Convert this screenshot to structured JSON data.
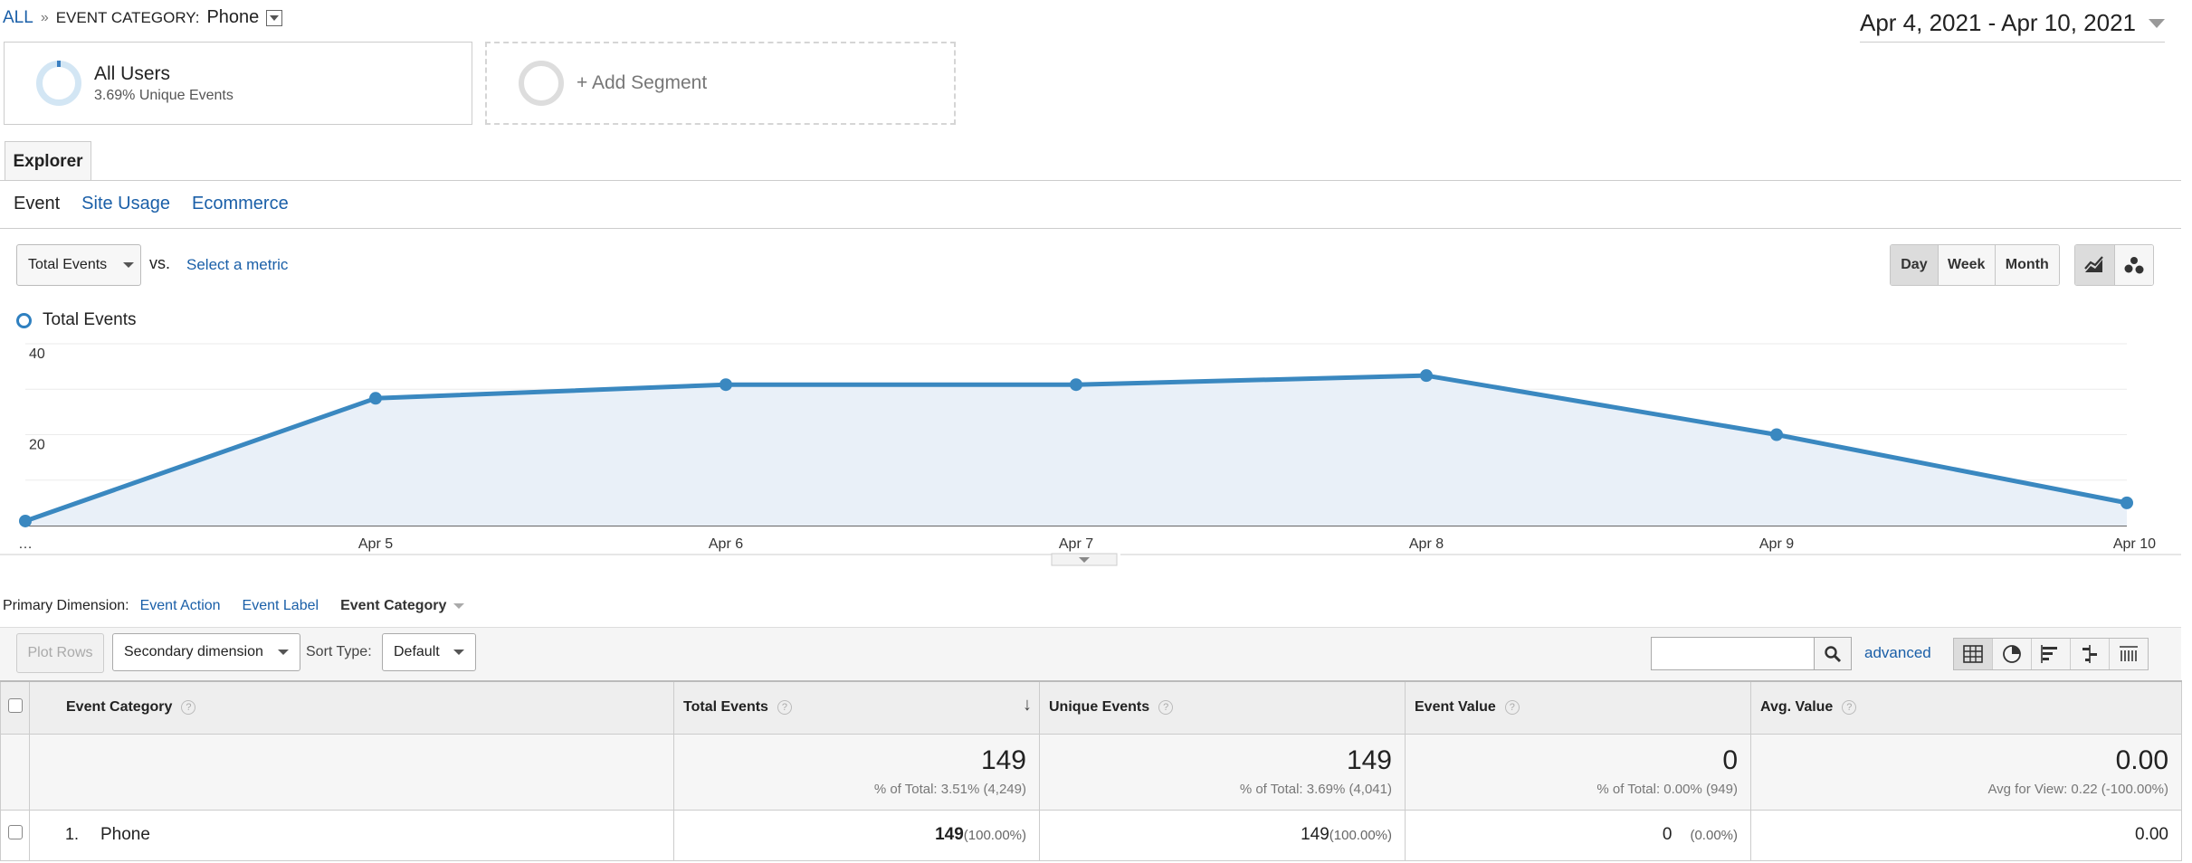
{
  "breadcrumb": {
    "root": "ALL",
    "separator": "»",
    "label": "EVENT CATEGORY:",
    "value": "Phone"
  },
  "date_range": "Apr 4, 2021 - Apr 10, 2021",
  "segments": [
    {
      "name": "All Users",
      "sub": "3.69% Unique Events"
    },
    {
      "name": "+ Add Segment"
    }
  ],
  "tab": "Explorer",
  "subtabs": [
    "Event",
    "Site Usage",
    "Ecommerce"
  ],
  "metric": {
    "selected": "Total Events",
    "vs": "vs.",
    "select_metric": "Select a metric"
  },
  "period_buttons": [
    "Day",
    "Week",
    "Month"
  ],
  "chart_data": {
    "type": "line",
    "legend": "Total Events",
    "x": [
      "…",
      "Apr 5",
      "Apr 6",
      "Apr 7",
      "Apr 8",
      "Apr 9",
      "Apr 10"
    ],
    "series": [
      {
        "name": "Total Events",
        "values": [
          1,
          28,
          31,
          31,
          33,
          20,
          5
        ]
      }
    ],
    "yticks": [
      20,
      40
    ],
    "ylim": [
      0,
      40
    ],
    "fill": true,
    "grid": true,
    "color": "#3a88c0"
  },
  "dimensions": {
    "label": "Primary Dimension:",
    "options": [
      "Event Action",
      "Event Label"
    ],
    "active": "Event Category"
  },
  "toolbar": {
    "plot_rows": "Plot Rows",
    "secondary_dimension": "Secondary dimension",
    "sort_type_label": "Sort Type:",
    "sort_type": "Default",
    "search_value": "",
    "advanced": "advanced"
  },
  "table": {
    "headers": [
      "Event Category",
      "Total Events",
      "Unique Events",
      "Event Value",
      "Avg. Value"
    ],
    "help_glyph": "?",
    "sort_glyph": "↓",
    "totals": [
      {
        "value": "149",
        "sub": "% of Total: 3.51% (4,249)"
      },
      {
        "value": "149",
        "sub": "% of Total: 3.69% (4,041)"
      },
      {
        "value": "0",
        "sub": "% of Total: 0.00% (949)"
      },
      {
        "value": "0.00",
        "sub": "Avg for View: 0.22 (-100.00%)"
      }
    ],
    "rows": [
      {
        "index": "1.",
        "category": "Phone",
        "total_events": "149",
        "total_events_pct": "(100.00%)",
        "unique_events": "149",
        "unique_events_pct": "(100.00%)",
        "event_value": "0",
        "event_value_pct": "(0.00%)",
        "avg_value": "0.00"
      }
    ]
  }
}
